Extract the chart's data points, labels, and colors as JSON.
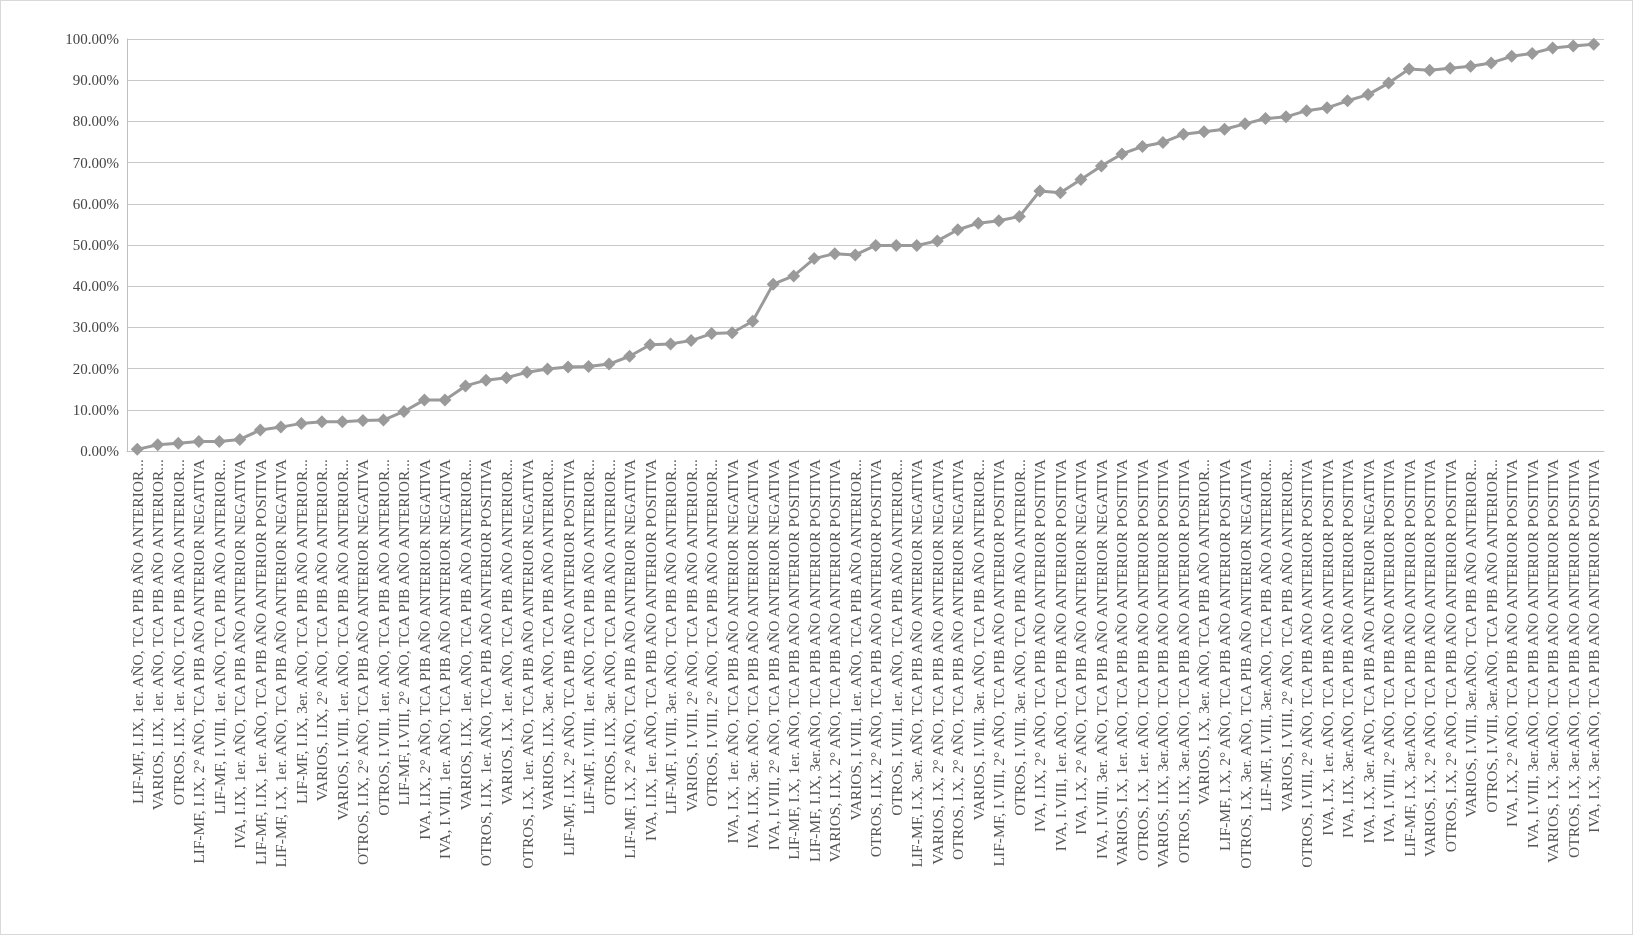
{
  "chart_data": {
    "type": "line",
    "marker": "diamond",
    "line_style": "solid",
    "grid": "y",
    "categories": [
      "LIF-MF, I.IX, 1er. AÑO, TCA PIB AÑO ANTERIOR...",
      "VARIOS, I.IX, 1er. AÑO, TCA PIB AÑO ANTERIOR...",
      "OTROS, I.IX, 1er. AÑO, TCA PIB AÑO ANTERIOR...",
      "LIF-MF, I.IX, 2° AÑO, TCA PIB AÑO ANTERIOR NEGATIVA",
      "LIF-MF, I.VIII, 1er. AÑO, TCA PIB AÑO ANTERIOR...",
      "IVA, I.IX, 1er. AÑO, TCA PIB AÑO ANTERIOR NEGATIVA",
      "LIF-MF, I.IX, 1er. AÑO, TCA PIB AÑO ANTERIOR POSITIVA",
      "LIF-MF, I.X, 1er. AÑO, TCA PIB AÑO ANTERIOR NEGATIVA",
      "LIF-MF, I.IX, 3er. AÑO, TCA PIB AÑO ANTERIOR...",
      "VARIOS, I.IX, 2° AÑO, TCA PIB AÑO ANTERIOR...",
      "VARIOS, I.VIII, 1er. AÑO, TCA PIB AÑO ANTERIOR...",
      "OTROS, I.IX, 2° AÑO, TCA PIB AÑO ANTERIOR NEGATIVA",
      "OTROS, I.VIII, 1er. AÑO, TCA PIB AÑO ANTERIOR...",
      "LIF-MF, I.VIII, 2° AÑO, TCA PIB AÑO ANTERIOR...",
      "IVA, I.IX, 2° AÑO, TCA PIB AÑO ANTERIOR NEGATIVA",
      "IVA, I.VIII, 1er. AÑO, TCA PIB AÑO ANTERIOR NEGATIVA",
      "VARIOS, I.IX, 1er. AÑO, TCA PIB AÑO ANTERIOR...",
      "OTROS, I.IX, 1er. AÑO, TCA PIB AÑO ANTERIOR POSITIVA",
      "VARIOS, I.X, 1er. AÑO, TCA PIB AÑO ANTERIOR...",
      "OTROS, I.X, 1er. AÑO, TCA PIB AÑO ANTERIOR NEGATIVA",
      "VARIOS, I.IX, 3er. AÑO, TCA PIB AÑO ANTERIOR...",
      "LIF-MF, I.IX, 2° AÑO, TCA PIB AÑO ANTERIOR POSITIVA",
      "LIF-MF, I.VIII, 1er. AÑO, TCA PIB AÑO ANTERIOR...",
      "OTROS, I.IX, 3er. AÑO, TCA PIB AÑO ANTERIOR...",
      "LIF-MF, I.X, 2° AÑO, TCA PIB AÑO ANTERIOR NEGATIVA",
      "IVA, I.IX, 1er. AÑO, TCA PIB AÑO ANTERIOR POSITIVA",
      "LIF-MF, I.VIII, 3er. AÑO, TCA PIB AÑO ANTERIOR...",
      "VARIOS, I.VIII, 2° AÑO, TCA PIB AÑO ANTERIOR...",
      "OTROS, I.VIII, 2° AÑO, TCA PIB AÑO ANTERIOR...",
      "IVA, I.X, 1er. AÑO, TCA PIB AÑO ANTERIOR NEGATIVA",
      "IVA, I.IX, 3er. AÑO, TCA PIB AÑO ANTERIOR NEGATIVA",
      "IVA, I.VIII, 2° AÑO, TCA PIB AÑO ANTERIOR NEGATIVA",
      "LIF-MF, I.X, 1er. AÑO, TCA PIB AÑO ANTERIOR POSITIVA",
      "LIF-MF, I.IX, 3er.AÑO, TCA PIB AÑO ANTERIOR POSITIVA",
      "VARIOS, I.IX, 2° AÑO, TCA PIB AÑO ANTERIOR POSITIVA",
      "VARIOS, I.VIII, 1er. AÑO, TCA PIB AÑO ANTERIOR...",
      "OTROS, I.IX, 2° AÑO, TCA PIB AÑO ANTERIOR POSITIVA",
      "OTROS, I.VIII, 1er. AÑO, TCA PIB AÑO ANTERIOR...",
      "LIF-MF, I.X, 3er. AÑO, TCA PIB AÑO ANTERIOR NEGATIVA",
      "VARIOS, I.X, 2° AÑO, TCA PIB AÑO ANTERIOR NEGATIVA",
      "OTROS, I.X, 2° AÑO, TCA PIB AÑO ANTERIOR NEGATIVA",
      "VARIOS, I.VIII, 3er. AÑO, TCA PIB AÑO ANTERIOR...",
      "LIF-MF, I.VIII, 2° AÑO, TCA PIB AÑO ANTERIOR POSITIVA",
      "OTROS, I.VIII, 3er. AÑO, TCA PIB AÑO ANTERIOR...",
      "IVA, I.IX, 2° AÑO, TCA PIB AÑO ANTERIOR POSITIVA",
      "IVA, I.VIII, 1er. AÑO, TCA PIB AÑO ANTERIOR POSITIVA",
      "IVA, I.X, 2° AÑO, TCA PIB AÑO ANTERIOR NEGATIVA",
      "IVA, I.VIII, 3er. AÑO, TCA PIB AÑO ANTERIOR NEGATIVA",
      "VARIOS, I.X, 1er. AÑO, TCA PIB AÑO ANTERIOR POSITIVA",
      "OTROS, I.X, 1er. AÑO, TCA PIB AÑO ANTERIOR POSITIVA",
      "VARIOS, I.IX, 3er.AÑO, TCA PIB AÑO ANTERIOR POSITIVA",
      "OTROS, I.IX, 3er.AÑO, TCA PIB AÑO ANTERIOR POSITIVA",
      "VARIOS, I.X, 3er. AÑO, TCA PIB AÑO ANTERIOR...",
      "LIF-MF, I.X, 2° AÑO, TCA PIB AÑO ANTERIOR POSITIVA",
      "OTROS, I.X, 3er. AÑO, TCA PIB AÑO ANTERIOR NEGATIVA",
      "LIF-MF, I.VIII, 3er.AÑO, TCA PIB AÑO ANTERIOR...",
      "VARIOS, I.VIII, 2° AÑO, TCA PIB AÑO ANTERIOR...",
      "OTROS, I.VIII, 2° AÑO, TCA PIB AÑO ANTERIOR POSITIVA",
      "IVA, I.X, 1er. AÑO, TCA PIB AÑO ANTERIOR POSITIVA",
      "IVA, I.IX, 3er.AÑO, TCA PIB AÑO ANTERIOR POSITIVA",
      "IVA, I.X, 3er. AÑO, TCA PIB AÑO ANTERIOR NEGATIVA",
      "IVA, I.VIII, 2° AÑO, TCA PIB AÑO ANTERIOR POSITIVA",
      "LIF-MF, I.X, 3er.AÑO, TCA PIB AÑO ANTERIOR POSITIVA",
      "VARIOS, I.X, 2° AÑO, TCA PIB AÑO ANTERIOR POSITIVA",
      "OTROS, I.X, 2° AÑO, TCA PIB AÑO ANTERIOR POSITIVA",
      "VARIOS, I.VIII, 3er.AÑO, TCA PIB AÑO ANTERIOR...",
      "OTROS, I.VIII, 3er.AÑO, TCA PIB AÑO ANTERIOR...",
      "IVA, I.X, 2° AÑO, TCA PIB AÑO ANTERIOR POSITIVA",
      "IVA, I.VIII, 3er.AÑO, TCA PIB AÑO ANTERIOR POSITIVA",
      "VARIOS, I.X, 3er.AÑO, TCA PIB AÑO ANTERIOR POSITIVA",
      "OTROS, I.X, 3er.AÑO, TCA PIB AÑO ANTERIOR POSITIVA",
      "IVA, I.X, 3er.AÑO, TCA PIB AÑO ANTERIOR POSITIVA"
    ],
    "series": [
      {
        "color": "#9a9a9a",
        "values": [
          0.4,
          1.5,
          1.9,
          2.3,
          2.3,
          2.8,
          5.1,
          5.8,
          6.7,
          7.1,
          7.1,
          7.4,
          7.5,
          9.6,
          12.4,
          12.4,
          15.8,
          17.2,
          17.8,
          19.1,
          19.9,
          20.4,
          20.5,
          21.1,
          23.0,
          25.8,
          26.0,
          26.8,
          28.5,
          28.7,
          31.5,
          40.5,
          42.5,
          46.7,
          47.9,
          47.6,
          49.9,
          49.9,
          49.9,
          51.0,
          53.7,
          55.3,
          55.9,
          56.9,
          63.1,
          62.7,
          65.9,
          69.2,
          72.1,
          73.9,
          74.9,
          76.9,
          77.5,
          78.1,
          79.4,
          80.7,
          81.1,
          82.6,
          83.3,
          85.0,
          86.5,
          89.3,
          92.7,
          92.4,
          92.9,
          93.4,
          94.2,
          95.8,
          96.5,
          97.8,
          98.3,
          98.7
        ]
      }
    ],
    "ylim": [
      0,
      100
    ],
    "yticks": [
      {
        "value": 0,
        "label": "0.00%"
      },
      {
        "value": 10,
        "label": "10.00%"
      },
      {
        "value": 20,
        "label": "20.00%"
      },
      {
        "value": 30,
        "label": "30.00%"
      },
      {
        "value": 40,
        "label": "40.00%"
      },
      {
        "value": 50,
        "label": "50.00%"
      },
      {
        "value": 60,
        "label": "60.00%"
      },
      {
        "value": 70,
        "label": "70.00%"
      },
      {
        "value": 80,
        "label": "80.00%"
      },
      {
        "value": 90,
        "label": "90.00%"
      },
      {
        "value": 100,
        "label": "100.00%"
      }
    ]
  }
}
